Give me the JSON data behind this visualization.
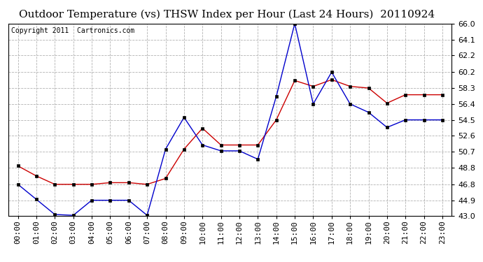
{
  "title": "Outdoor Temperature (vs) THSW Index per Hour (Last 24 Hours)  20110924",
  "copyright_text": "Copyright 2011  Cartronics.com",
  "x_labels": [
    "00:00",
    "01:00",
    "02:00",
    "03:00",
    "04:00",
    "05:00",
    "06:00",
    "07:00",
    "08:00",
    "09:00",
    "10:00",
    "11:00",
    "12:00",
    "13:00",
    "14:00",
    "15:00",
    "16:00",
    "17:00",
    "18:00",
    "19:00",
    "20:00",
    "21:00",
    "22:00",
    "23:00"
  ],
  "temp_red": [
    49.0,
    47.8,
    46.8,
    46.8,
    46.8,
    47.0,
    47.0,
    46.8,
    47.5,
    51.0,
    53.5,
    51.5,
    51.5,
    51.5,
    54.5,
    59.2,
    58.5,
    59.3,
    58.5,
    58.3,
    56.5,
    57.5,
    57.5,
    57.5
  ],
  "thsw_blue": [
    46.8,
    45.0,
    43.2,
    43.1,
    44.9,
    44.9,
    44.9,
    43.1,
    51.0,
    54.8,
    51.5,
    50.8,
    50.8,
    49.8,
    57.3,
    66.0,
    56.4,
    60.2,
    56.4,
    55.4,
    53.6,
    54.5,
    54.5,
    54.5
  ],
  "y_min": 43.0,
  "y_max": 66.0,
  "y_ticks": [
    43.0,
    44.9,
    46.8,
    48.8,
    50.7,
    52.6,
    54.5,
    56.4,
    58.3,
    60.2,
    62.2,
    64.1,
    66.0
  ],
  "bg_color": "#ffffff",
  "plot_bg_color": "#ffffff",
  "grid_color": "#aaaaaa",
  "red_color": "#cc0000",
  "blue_color": "#0000cc",
  "title_fontsize": 11,
  "tick_fontsize": 8,
  "copyright_fontsize": 7
}
